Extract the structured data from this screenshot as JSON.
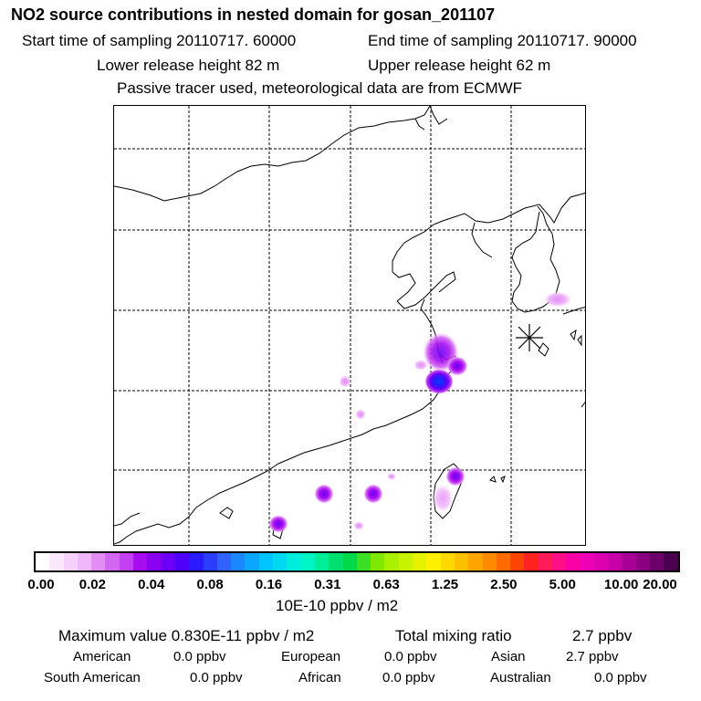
{
  "header": {
    "title": "NO2 source contributions in nested domain for gosan_201107",
    "start_label": "Start time of sampling 20110717. 60000",
    "end_label": "End time of sampling 20110717. 90000",
    "lower_release": "Lower release height   82 m",
    "upper_release": "Upper release height   62 m",
    "tracer_note": "Passive tracer used, meteorological data are from ECMWF"
  },
  "map": {
    "receptor_marker": "station-star",
    "colors": {
      "land_line": "#000000",
      "grid_line": "#000000"
    }
  },
  "colorbar": {
    "ticks": [
      "0.00",
      "0.02",
      "0.04",
      "0.08",
      "0.16",
      "0.31",
      "0.63",
      "1.25",
      "2.50",
      "5.00",
      "10.00",
      "20.00"
    ],
    "unit": "10E-10 ppbv / m2",
    "colors": [
      "#ffffff",
      "#fbe8fd",
      "#f5d0fb",
      "#efb6f9",
      "#e38cf6",
      "#d466f4",
      "#c23ff2",
      "#a60cef",
      "#8a00f0",
      "#6a00f5",
      "#4d00fa",
      "#2a1aff",
      "#2b3dff",
      "#2f63ff",
      "#1a86ff",
      "#0aa6ff",
      "#00c4ff",
      "#00d8f0",
      "#00ecdc",
      "#00f5c4",
      "#00ee9a",
      "#00e070",
      "#00d84a",
      "#3ce020",
      "#7fe800",
      "#a8ef00",
      "#c9f200",
      "#e6f200",
      "#fff000",
      "#ffd800",
      "#ffc000",
      "#ffa500",
      "#ff8a00",
      "#ff6a00",
      "#ff4400",
      "#ff2222",
      "#ff1a5a",
      "#ff0d86",
      "#f700a6",
      "#ee00b6",
      "#dd00b0",
      "#c700a8",
      "#a80096",
      "#88007e",
      "#6a0068",
      "#4a004c"
    ]
  },
  "summary": {
    "max_label": "Maximum value  0.830E-11 ppbv / m2",
    "total_label": "Total mixing ratio",
    "total_value": "2.7 ppbv",
    "regions": [
      {
        "name": "American",
        "value": "0.0 ppbv"
      },
      {
        "name": "European",
        "value": "0.0 ppbv"
      },
      {
        "name": "Asian",
        "value": "2.7 ppbv"
      },
      {
        "name": "South American",
        "value": "0.0 ppbv"
      },
      {
        "name": "African",
        "value": "0.0 ppbv"
      },
      {
        "name": "Australian",
        "value": "0.0 ppbv"
      }
    ]
  }
}
